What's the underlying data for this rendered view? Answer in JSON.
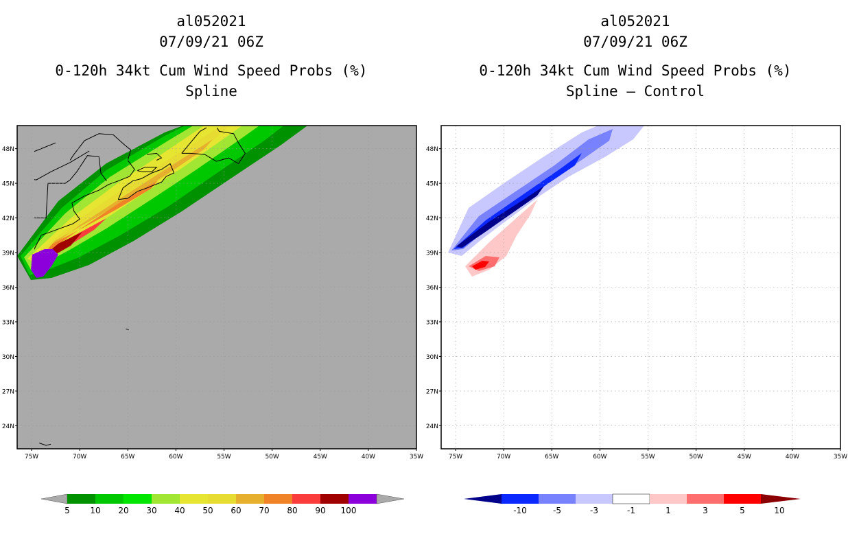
{
  "panels": [
    {
      "id": "left",
      "storm_id": "al052021",
      "datetime": "07/09/21 06Z",
      "title": "0-120h 34kt Cum Wind Speed Probs (%)",
      "subtitle": "Spline",
      "background_color": "#aaaaaa"
    },
    {
      "id": "right",
      "storm_id": "al052021",
      "datetime": "07/09/21 06Z",
      "title": "0-120h 34kt Cum Wind Speed Probs (%)",
      "subtitle": "Spline – Control",
      "background_color": "#ffffff"
    }
  ],
  "map": {
    "lon_range": [
      -76.5,
      -35
    ],
    "lat_range": [
      22,
      50
    ],
    "lon_ticks": [
      {
        "value": -75,
        "label": "75W"
      },
      {
        "value": -70,
        "label": "70W"
      },
      {
        "value": -65,
        "label": "65W"
      },
      {
        "value": -60,
        "label": "60W"
      },
      {
        "value": -55,
        "label": "55W"
      },
      {
        "value": -50,
        "label": "50W"
      },
      {
        "value": -45,
        "label": "45W"
      },
      {
        "value": -40,
        "label": "40W"
      },
      {
        "value": -35,
        "label": "35W"
      }
    ],
    "lat_ticks": [
      {
        "value": 24,
        "label": "24N"
      },
      {
        "value": 27,
        "label": "27N"
      },
      {
        "value": 30,
        "label": "30N"
      },
      {
        "value": 33,
        "label": "33N"
      },
      {
        "value": 36,
        "label": "36N"
      },
      {
        "value": 39,
        "label": "39N"
      },
      {
        "value": 42,
        "label": "42N"
      },
      {
        "value": 45,
        "label": "45N"
      },
      {
        "value": 48,
        "label": "48N"
      }
    ]
  },
  "colorbars": {
    "left": {
      "labels": [
        "5",
        "10",
        "20",
        "30",
        "40",
        "50",
        "60",
        "70",
        "80",
        "90",
        "100"
      ],
      "colors": [
        "#009100",
        "#00c800",
        "#00e600",
        "#a0e632",
        "#e6e632",
        "#e6dc32",
        "#e6af2d",
        "#f08228",
        "#fa3c3c",
        "#a00000",
        "#8c00dc"
      ],
      "end_color": "#aaaaaa"
    },
    "right": {
      "labels": [
        "-10",
        "-5",
        "-3",
        "-1",
        "1",
        "3",
        "5",
        "10"
      ],
      "colors": [
        "#0000cd",
        "#0a28ff",
        "#7882ff",
        "#c8c8ff",
        "#ffffff",
        "#ffc8c8",
        "#ff6e6e",
        "#ff0000",
        "#8b0000"
      ],
      "low_end_color": "#00008b",
      "high_end_color": "#8b0000"
    }
  },
  "contour_colors": {
    "left": {
      "p5": "#009100",
      "p10": "#00c800",
      "p20": "#a0e632",
      "p30": "#e6e632",
      "p40": "#e6dc32",
      "p50": "#e6af2d",
      "p60": "#f08228",
      "p70": "#fa3c3c",
      "p80": "#a00000",
      "p90": "#8c00dc"
    },
    "right": {
      "neg_light": "#c8c8ff",
      "neg_mid": "#7882ff",
      "neg_strong": "#0a28ff",
      "neg_max": "#00008b",
      "pos_light": "#ffc8c8",
      "pos_mid": "#ff6e6e",
      "pos_strong": "#ff0000"
    }
  }
}
